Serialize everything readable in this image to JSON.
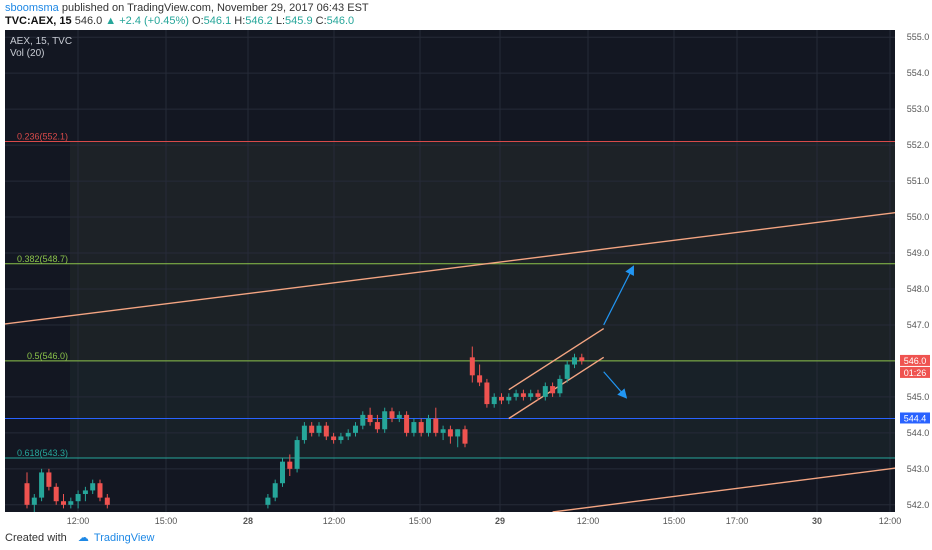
{
  "header": {
    "author": "sboomsma",
    "published_text": "published on TradingView.com, November 29, 2017 06:43 EST",
    "symbol": "TVC:AEX, 15",
    "last": "546.0",
    "change": "+2.4 (+0.45%)",
    "o_label": "O:",
    "o_value": "546.1",
    "h_label": "H:",
    "h_value": "546.2",
    "l_label": "L:",
    "l_value": "545.9",
    "c_label": "C:",
    "c_value": "546.0"
  },
  "legend": {
    "series": "AEX, 15, TVC",
    "volume": "Vol (20)"
  },
  "footer": {
    "created_with": "Created with",
    "brand": "TradingView"
  },
  "chart_data": {
    "type": "candlestick",
    "ylim": [
      541.8,
      555.2
    ],
    "y_ticks": [
      542.0,
      543.0,
      544.0,
      545.0,
      546.0,
      547.0,
      548.0,
      549.0,
      550.0,
      551.0,
      552.0,
      553.0,
      554.0,
      555.0
    ],
    "x_ticks": [
      "12:00",
      "15:00",
      "28",
      "12:00",
      "15:00",
      "29",
      "12:00",
      "15:00",
      "17:00",
      "30",
      "12:00"
    ],
    "price_label": "546.0",
    "countdown_label": "01:26",
    "level_label": "544.4",
    "fib_levels": [
      {
        "label": "0.236(552.1)",
        "value": 552.1,
        "color": "#d84a4a"
      },
      {
        "label": "0.382(548.7)",
        "value": 548.7,
        "color": "#8bc34a"
      },
      {
        "label": "0.5(546.0)",
        "value": 546.0,
        "color": "#8bc34a"
      },
      {
        "label": "0.618(543.3)",
        "value": 543.3,
        "color": "#26a69a"
      }
    ],
    "horizontal_line": {
      "value": 544.4,
      "color": "#2962ff"
    },
    "colors": {
      "up": "#26a69a",
      "down": "#ef5350",
      "trend": "#f4a582",
      "arrow": "#2196f3",
      "background": "#131722"
    },
    "candles": [
      {
        "x": 0,
        "o": 542.6,
        "h": 542.9,
        "l": 541.9,
        "c": 542.0
      },
      {
        "x": 1,
        "o": 542.0,
        "h": 542.3,
        "l": 541.8,
        "c": 542.2
      },
      {
        "x": 2,
        "o": 542.2,
        "h": 543.0,
        "l": 542.1,
        "c": 542.9
      },
      {
        "x": 3,
        "o": 542.9,
        "h": 543.0,
        "l": 542.4,
        "c": 542.5
      },
      {
        "x": 4,
        "o": 542.5,
        "h": 542.6,
        "l": 542.0,
        "c": 542.1
      },
      {
        "x": 5,
        "o": 542.1,
        "h": 542.3,
        "l": 541.9,
        "c": 542.0
      },
      {
        "x": 6,
        "o": 542.0,
        "h": 542.2,
        "l": 541.9,
        "c": 542.1
      },
      {
        "x": 7,
        "o": 542.1,
        "h": 542.4,
        "l": 541.9,
        "c": 542.3
      },
      {
        "x": 8,
        "o": 542.3,
        "h": 542.5,
        "l": 542.1,
        "c": 542.4
      },
      {
        "x": 9,
        "o": 542.4,
        "h": 542.7,
        "l": 542.3,
        "c": 542.6
      },
      {
        "x": 10,
        "o": 542.6,
        "h": 542.7,
        "l": 542.1,
        "c": 542.2
      },
      {
        "x": 11,
        "o": 542.2,
        "h": 542.3,
        "l": 541.9,
        "c": 542.0
      },
      {
        "x": 33,
        "o": 542.0,
        "h": 542.3,
        "l": 541.9,
        "c": 542.2
      },
      {
        "x": 34,
        "o": 542.2,
        "h": 542.7,
        "l": 542.1,
        "c": 542.6
      },
      {
        "x": 35,
        "o": 542.6,
        "h": 543.3,
        "l": 542.5,
        "c": 543.2
      },
      {
        "x": 36,
        "o": 543.2,
        "h": 543.4,
        "l": 542.8,
        "c": 543.0
      },
      {
        "x": 37,
        "o": 543.0,
        "h": 543.9,
        "l": 542.9,
        "c": 543.8
      },
      {
        "x": 38,
        "o": 543.8,
        "h": 544.3,
        "l": 543.7,
        "c": 544.2
      },
      {
        "x": 39,
        "o": 544.2,
        "h": 544.3,
        "l": 543.9,
        "c": 544.0
      },
      {
        "x": 40,
        "o": 544.0,
        "h": 544.3,
        "l": 543.9,
        "c": 544.2
      },
      {
        "x": 41,
        "o": 544.2,
        "h": 544.3,
        "l": 543.8,
        "c": 543.9
      },
      {
        "x": 42,
        "o": 543.9,
        "h": 544.0,
        "l": 543.7,
        "c": 543.8
      },
      {
        "x": 43,
        "o": 543.8,
        "h": 544.0,
        "l": 543.7,
        "c": 543.9
      },
      {
        "x": 44,
        "o": 543.9,
        "h": 544.1,
        "l": 543.8,
        "c": 544.0
      },
      {
        "x": 45,
        "o": 544.0,
        "h": 544.3,
        "l": 543.9,
        "c": 544.2
      },
      {
        "x": 46,
        "o": 544.2,
        "h": 544.6,
        "l": 544.1,
        "c": 544.5
      },
      {
        "x": 47,
        "o": 544.5,
        "h": 544.7,
        "l": 544.2,
        "c": 544.3
      },
      {
        "x": 48,
        "o": 544.3,
        "h": 544.5,
        "l": 544.0,
        "c": 544.1
      },
      {
        "x": 49,
        "o": 544.1,
        "h": 544.7,
        "l": 544.0,
        "c": 544.6
      },
      {
        "x": 50,
        "o": 544.6,
        "h": 544.7,
        "l": 544.3,
        "c": 544.4
      },
      {
        "x": 51,
        "o": 544.4,
        "h": 544.6,
        "l": 544.3,
        "c": 544.5
      },
      {
        "x": 52,
        "o": 544.5,
        "h": 544.6,
        "l": 543.9,
        "c": 544.0
      },
      {
        "x": 53,
        "o": 544.0,
        "h": 544.4,
        "l": 543.9,
        "c": 544.3
      },
      {
        "x": 54,
        "o": 544.3,
        "h": 544.4,
        "l": 543.9,
        "c": 544.0
      },
      {
        "x": 55,
        "o": 544.0,
        "h": 544.5,
        "l": 543.9,
        "c": 544.4
      },
      {
        "x": 56,
        "o": 544.4,
        "h": 544.7,
        "l": 543.9,
        "c": 544.0
      },
      {
        "x": 57,
        "o": 544.0,
        "h": 544.2,
        "l": 543.8,
        "c": 544.1
      },
      {
        "x": 58,
        "o": 544.1,
        "h": 544.2,
        "l": 543.7,
        "c": 543.9
      },
      {
        "x": 59,
        "o": 543.9,
        "h": 544.1,
        "l": 543.6,
        "c": 544.1
      },
      {
        "x": 60,
        "o": 544.1,
        "h": 544.2,
        "l": 543.6,
        "c": 543.7
      },
      {
        "x": 61,
        "o": 546.1,
        "h": 546.4,
        "l": 545.4,
        "c": 545.6
      },
      {
        "x": 62,
        "o": 545.6,
        "h": 545.9,
        "l": 545.3,
        "c": 545.4
      },
      {
        "x": 63,
        "o": 545.4,
        "h": 545.5,
        "l": 544.7,
        "c": 544.8
      },
      {
        "x": 64,
        "o": 544.8,
        "h": 545.1,
        "l": 544.7,
        "c": 545.0
      },
      {
        "x": 65,
        "o": 545.0,
        "h": 545.1,
        "l": 544.8,
        "c": 544.9
      },
      {
        "x": 66,
        "o": 544.9,
        "h": 545.1,
        "l": 544.8,
        "c": 545.0
      },
      {
        "x": 67,
        "o": 545.0,
        "h": 545.2,
        "l": 544.9,
        "c": 545.1
      },
      {
        "x": 68,
        "o": 545.1,
        "h": 545.2,
        "l": 544.9,
        "c": 545.0
      },
      {
        "x": 69,
        "o": 545.0,
        "h": 545.2,
        "l": 544.9,
        "c": 545.1
      },
      {
        "x": 70,
        "o": 545.1,
        "h": 545.2,
        "l": 544.9,
        "c": 545.0
      },
      {
        "x": 71,
        "o": 545.0,
        "h": 545.4,
        "l": 544.9,
        "c": 545.3
      },
      {
        "x": 72,
        "o": 545.3,
        "h": 545.4,
        "l": 545.0,
        "c": 545.1
      },
      {
        "x": 73,
        "o": 545.1,
        "h": 545.6,
        "l": 545.0,
        "c": 545.5
      },
      {
        "x": 74,
        "o": 545.5,
        "h": 546.0,
        "l": 545.4,
        "c": 545.9
      },
      {
        "x": 75,
        "o": 545.9,
        "h": 546.2,
        "l": 545.8,
        "c": 546.1
      },
      {
        "x": 76,
        "o": 546.1,
        "h": 546.2,
        "l": 545.9,
        "c": 546.0
      }
    ],
    "trend_lines": [
      {
        "from": [
          -12,
          546.8
        ],
        "to": [
          122,
          550.2
        ]
      },
      {
        "from": [
          72,
          541.8
        ],
        "to": [
          122,
          543.1
        ]
      }
    ],
    "channel": [
      {
        "from": [
          66,
          545.2
        ],
        "to": [
          79,
          546.9
        ]
      },
      {
        "from": [
          66,
          544.4
        ],
        "to": [
          79,
          546.1
        ]
      }
    ],
    "arrows": [
      {
        "from": [
          79,
          547.0
        ],
        "to": [
          83,
          548.6
        ]
      },
      {
        "from": [
          79,
          545.7
        ],
        "to": [
          82,
          545.0
        ]
      }
    ]
  }
}
